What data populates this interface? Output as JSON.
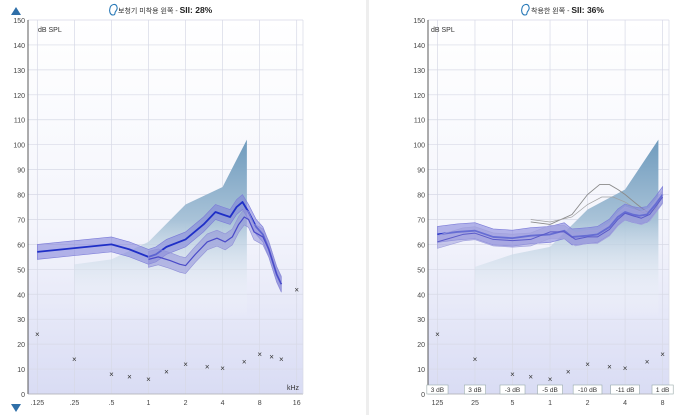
{
  "chart_data": [
    {
      "type": "line",
      "title_prefix": "보청기 미착용 왼쪽 -",
      "title_sii": "SII: 28%",
      "ylabel": "dB SPL",
      "xlabel": "kHz",
      "ylim": [
        0,
        150
      ],
      "yticks": [
        0,
        10,
        20,
        30,
        40,
        50,
        60,
        70,
        80,
        90,
        100,
        110,
        120,
        130,
        140,
        150
      ],
      "xticks": [
        {
          "label": ".125",
          "f": 0.125
        },
        {
          "label": ".25",
          "f": 0.25
        },
        {
          "label": ".5",
          "f": 0.5
        },
        {
          "label": "1",
          "f": 1
        },
        {
          "label": "2",
          "f": 2
        },
        {
          "label": "4",
          "f": 4
        },
        {
          "label": "8",
          "f": 8
        },
        {
          "label": "16",
          "f": 16
        }
      ],
      "xlim": [
        0.105,
        18
      ],
      "speech_area": {
        "upper": [
          [
            0.25,
            52
          ],
          [
            0.5,
            54
          ],
          [
            1,
            61
          ],
          [
            2,
            76
          ],
          [
            4,
            83
          ],
          [
            6.3,
            102
          ]
        ],
        "lower": [
          [
            0.25,
            30
          ],
          [
            6.3,
            30
          ]
        ]
      },
      "series": [
        {
          "points": [
            [
              0.125,
              57
            ],
            [
              0.25,
              58.5
            ],
            [
              0.5,
              60
            ],
            [
              0.7,
              58
            ],
            [
              1,
              55
            ],
            [
              1.15,
              56
            ],
            [
              1.4,
              59
            ],
            [
              2,
              62
            ],
            [
              2.8,
              68
            ],
            [
              3.5,
              73
            ],
            [
              4,
              72
            ],
            [
              4.6,
              71
            ],
            [
              5.2,
              75
            ],
            [
              5.8,
              77
            ],
            [
              6.5,
              73
            ],
            [
              7.5,
              67
            ],
            [
              8.5,
              64
            ],
            [
              9.5,
              58
            ],
            [
              11,
              48
            ],
            [
              12,
              44
            ]
          ],
          "band": 3,
          "color": "#1f2fc7",
          "band_color": "#7b7bd8",
          "width": 1.8
        },
        {
          "points": [
            [
              1,
              54
            ],
            [
              1.2,
              55
            ],
            [
              1.5,
              53.5
            ],
            [
              1.8,
              52
            ],
            [
              2,
              51.5
            ],
            [
              2.4,
              56
            ],
            [
              3,
              61
            ],
            [
              3.6,
              62.5
            ],
            [
              4.2,
              61
            ],
            [
              4.8,
              63
            ],
            [
              5.4,
              68
            ],
            [
              6,
              71
            ],
            [
              6.5,
              70
            ],
            [
              7.2,
              65
            ],
            [
              8.5,
              63
            ],
            [
              9.5,
              58
            ],
            [
              11,
              48
            ],
            [
              12,
              44
            ]
          ],
          "band": 3.2,
          "color": "#4a4ac8",
          "band_color": "#9090d8",
          "width": 1.2
        }
      ],
      "thresholds": [
        [
          0.125,
          24
        ],
        [
          0.25,
          14
        ],
        [
          0.5,
          8
        ],
        [
          0.7,
          7
        ],
        [
          1,
          6
        ],
        [
          1.4,
          9
        ],
        [
          2,
          12
        ],
        [
          3,
          11
        ],
        [
          4,
          10.5
        ],
        [
          6,
          13
        ],
        [
          8,
          16
        ],
        [
          10,
          15
        ],
        [
          12,
          14
        ],
        [
          16,
          42
        ]
      ]
    },
    {
      "type": "line",
      "title_prefix": "착용한 왼쪽 -",
      "title_sii": "SII: 36%",
      "ylabel": "dB SPL",
      "ylim": [
        0,
        150
      ],
      "yticks": [
        0,
        10,
        20,
        30,
        40,
        50,
        60,
        70,
        80,
        90,
        100,
        110,
        120,
        130,
        140,
        150
      ],
      "xticks": [
        {
          "label": "125",
          "f": 0.125
        },
        {
          "label": "25",
          "f": 0.25
        },
        {
          "label": "5",
          "f": 0.5
        },
        {
          "label": "1",
          "f": 1
        },
        {
          "label": "2",
          "f": 2
        },
        {
          "label": "4",
          "f": 4
        },
        {
          "label": "8",
          "f": 8
        }
      ],
      "xlim": [
        0.105,
        9
      ],
      "speech_area": {
        "upper": [
          [
            0.25,
            51
          ],
          [
            0.5,
            56
          ],
          [
            1,
            59
          ],
          [
            2,
            74
          ],
          [
            4,
            82
          ],
          [
            7.4,
            102
          ]
        ],
        "lower": [
          [
            0.25,
            30
          ],
          [
            7.4,
            30
          ]
        ]
      },
      "series": [
        {
          "points": [
            [
              0.125,
              64
            ],
            [
              0.18,
              65
            ],
            [
              0.25,
              65.5
            ],
            [
              0.35,
              63
            ],
            [
              0.5,
              62.5
            ],
            [
              0.7,
              63.5
            ],
            [
              1,
              64
            ],
            [
              1.3,
              65.5
            ],
            [
              1.5,
              63
            ],
            [
              2,
              63.5
            ],
            [
              2.4,
              64
            ],
            [
              3,
              67
            ],
            [
              3.5,
              71
            ],
            [
              4,
              73
            ],
            [
              4.6,
              72
            ],
            [
              5.2,
              71.5
            ],
            [
              6,
              72
            ],
            [
              7,
              76
            ],
            [
              8,
              80
            ]
          ],
          "band": 3.2,
          "color": "#1f2fc7",
          "band_color": "#7b7bd8",
          "width": 1.8
        },
        {
          "points": [
            [
              0.125,
              61
            ],
            [
              0.2,
              64
            ],
            [
              0.25,
              64.5
            ],
            [
              0.35,
              62
            ],
            [
              0.5,
              61.5
            ],
            [
              0.7,
              62
            ],
            [
              1,
              65
            ],
            [
              1.3,
              65
            ],
            [
              1.6,
              62
            ],
            [
              2,
              63
            ],
            [
              2.4,
              63
            ],
            [
              3,
              66
            ],
            [
              3.5,
              70
            ],
            [
              4,
              72.5
            ],
            [
              4.6,
              71.5
            ],
            [
              5.4,
              70.5
            ],
            [
              6.3,
              72
            ],
            [
              7,
              75
            ],
            [
              8,
              79
            ]
          ],
          "band": 2.6,
          "color": "#5a5ac8",
          "band_color": "#a0a0dc",
          "width": 1.0
        }
      ],
      "target": [
        [
          0.7,
          69
        ],
        [
          1,
          68
        ],
        [
          1.5,
          72
        ],
        [
          2,
          80
        ],
        [
          2.5,
          84
        ],
        [
          3,
          84
        ],
        [
          3.5,
          82
        ],
        [
          4,
          80
        ],
        [
          5,
          76
        ],
        [
          6,
          73
        ],
        [
          7,
          74
        ],
        [
          8,
          80
        ]
      ],
      "target2": [
        [
          0.7,
          70
        ],
        [
          1,
          69
        ],
        [
          1.5,
          71
        ],
        [
          2,
          76
        ],
        [
          2.6,
          79
        ],
        [
          3.2,
          79
        ],
        [
          4,
          77
        ],
        [
          5,
          74
        ],
        [
          6,
          72
        ],
        [
          7,
          74
        ]
      ],
      "thresholds": [
        [
          0.125,
          24
        ],
        [
          0.25,
          14
        ],
        [
          0.5,
          8
        ],
        [
          0.7,
          7
        ],
        [
          1,
          6
        ],
        [
          1.4,
          9
        ],
        [
          2,
          12
        ],
        [
          3,
          11
        ],
        [
          4,
          10.5
        ],
        [
          6,
          13
        ],
        [
          8,
          16
        ]
      ],
      "gain_labels": [
        {
          "label": "3 dB",
          "f": 0.125
        },
        {
          "label": "3 dB",
          "f": 0.25
        },
        {
          "label": "-3 dB",
          "f": 0.5
        },
        {
          "label": "-5 dB",
          "f": 1
        },
        {
          "label": "-10 dB",
          "f": 2
        },
        {
          "label": "-11 dB",
          "f": 4
        },
        {
          "label": "1 dB",
          "f": 8
        }
      ]
    }
  ]
}
